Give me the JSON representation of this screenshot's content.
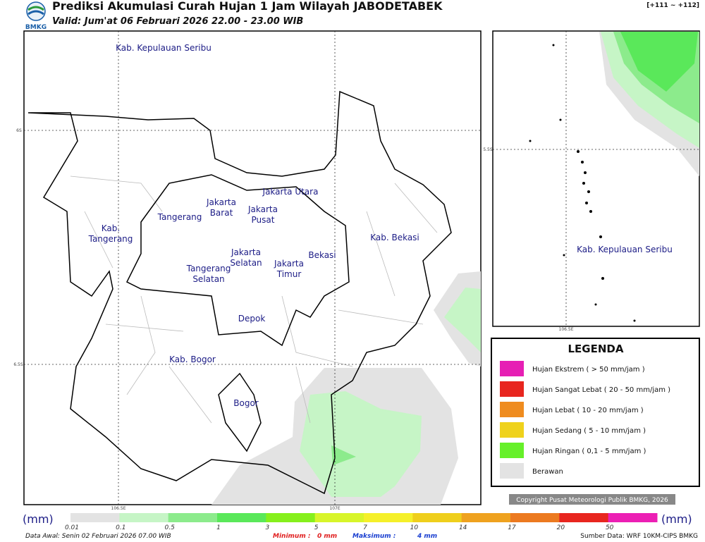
{
  "header": {
    "title": "Prediksi Akumulasi Curah Hujan 1 Jam Wilayah JABODETABEK",
    "valid": "Valid: Jum'at 06 Februari 2026 22.00 - 23.00 WIB",
    "logo": "BMKG",
    "code": "[+111 ~ +112]"
  },
  "map": {
    "labels": [
      [
        "Kab. Kepulauan Seribu"
      ],
      [
        "Jakarta Utara"
      ],
      [
        "Jakarta",
        "Barat"
      ],
      [
        "Jakarta",
        "Pusat"
      ],
      [
        "Tangerang"
      ],
      [
        "Kab.",
        "Tangerang"
      ],
      [
        "Kab. Bekasi"
      ],
      [
        "Jakarta",
        "Selatan"
      ],
      [
        "Bekasi"
      ],
      [
        "Jakarta",
        "Timur"
      ],
      [
        "Tangerang",
        "Selatan"
      ],
      [
        "Depok"
      ],
      [
        "Kab. Bogor"
      ],
      [
        "Bogor"
      ]
    ],
    "grid": [
      "6S",
      "6.5S",
      "106.5E",
      "107E"
    ]
  },
  "inset": {
    "label": "Kab. Kepulauan Seribu",
    "grid": [
      "5.5S",
      "106.5E"
    ]
  },
  "legend": {
    "title": "LEGENDA",
    "items": [
      {
        "label": "Hujan Ekstrem ( > 50 mm/jam )",
        "color": "#e61fb4"
      },
      {
        "label": "Hujan Sangat Lebat ( 20 - 50 mm/jam )",
        "color": "#e8261f"
      },
      {
        "label": "Hujan Lebat ( 10 - 20 mm/jam )",
        "color": "#ef8c1f"
      },
      {
        "label": "Hujan Sedang ( 5 - 10 mm/jam )",
        "color": "#efd21c"
      },
      {
        "label": "Hujan Ringan ( 0,1 - 5 mm/jam )",
        "color": "#66f02a"
      },
      {
        "label": "Berawan",
        "color": "#e3e3e3"
      }
    ]
  },
  "copyright": "Copyright Pusat Meteorologi Publik BMKG, 2026",
  "colorbar": {
    "unit": "(mm)",
    "ticks": [
      "0.01",
      "0.1",
      "0.5",
      "1",
      "3",
      "5",
      "7",
      "10",
      "14",
      "17",
      "20",
      "50"
    ],
    "colors": [
      "#e3e3e3",
      "#c6f5c6",
      "#8ceb8c",
      "#5ae85a",
      "#86f01c",
      "#d8f52a",
      "#f5f02a",
      "#efcf1c",
      "#efa21f",
      "#ec7a20",
      "#e8261f",
      "#ec1fb4"
    ]
  },
  "footer": {
    "data_awal": "Data Awal: Senin 02 Februari 2026 07.00 WIB",
    "min_label": "Minimum :",
    "min_value": "0 mm",
    "max_label": "Maksimum :",
    "max_value": "4 mm",
    "source": "Sumber Data: WRF 10KM-CIPS BMKG"
  }
}
